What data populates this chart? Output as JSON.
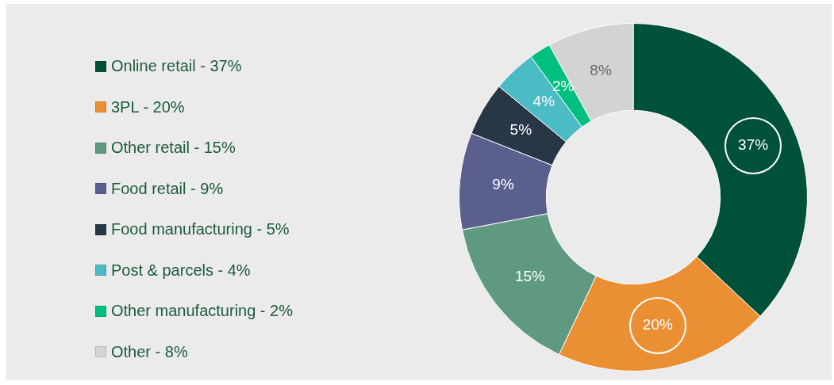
{
  "chart_data": {
    "type": "donut",
    "categories": [
      "Online retail - 37%",
      "3PL - 20%",
      "Other retail - 15%",
      "Food retail - 9%",
      "Food manufacturing - 5%",
      "Post & parcels - 4%",
      "Other manufacturing - 2%",
      "Other - 8%"
    ],
    "values": [
      37,
      20,
      15,
      9,
      5,
      4,
      2,
      8
    ],
    "value_labels": [
      "37%",
      "20%",
      "15%",
      "9%",
      "5%",
      "4%",
      "2%",
      "8%"
    ],
    "colors": [
      "#00513a",
      "#eb8f34",
      "#5f9a80",
      "#5a5f8e",
      "#273746",
      "#4bbbc4",
      "#00bf7f",
      "#d3d3d3"
    ],
    "legend": "left"
  }
}
